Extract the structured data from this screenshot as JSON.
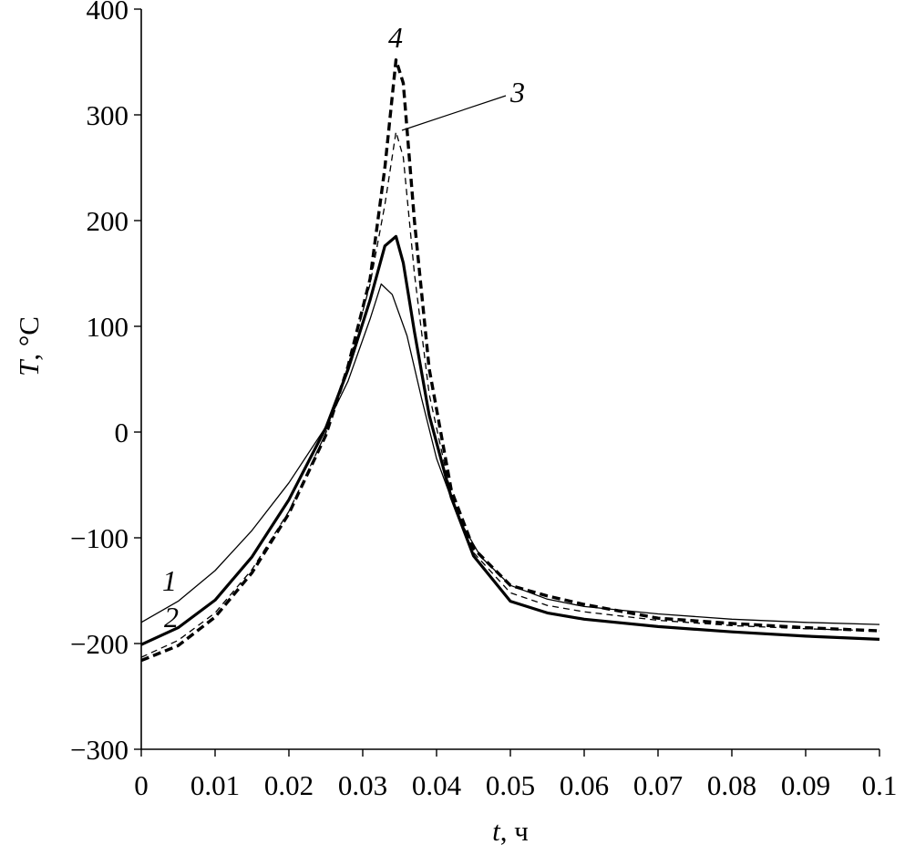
{
  "chart_data": {
    "type": "line",
    "title": "",
    "xlabel_var": "t",
    "xlabel_unit": ", ч",
    "ylabel_var": "T",
    "ylabel_unit": ", °C",
    "xlim": [
      0,
      0.1
    ],
    "ylim": [
      -300,
      400
    ],
    "x_ticks": [
      0,
      0.01,
      0.02,
      0.03,
      0.04,
      0.05,
      0.06,
      0.07,
      0.08,
      0.09,
      0.1
    ],
    "x_tick_labels": [
      "0",
      "0.01",
      "0.02",
      "0.03",
      "0.04",
      "0.05",
      "0.06",
      "0.07",
      "0.08",
      "0.09",
      "0.1"
    ],
    "y_ticks": [
      -300,
      -200,
      -100,
      0,
      100,
      200,
      300,
      400
    ],
    "y_tick_labels": [
      "−300",
      "−200",
      "−100",
      "0",
      "100",
      "200",
      "300",
      "400"
    ],
    "grid": false,
    "legend": "none",
    "series": [
      {
        "name": "1",
        "style": "thin-solid",
        "x": [
          0,
          0.005,
          0.01,
          0.015,
          0.02,
          0.025,
          0.028,
          0.031,
          0.0325,
          0.034,
          0.036,
          0.038,
          0.04,
          0.043,
          0.046,
          0.05,
          0.055,
          0.06,
          0.07,
          0.08,
          0.09,
          0.1
        ],
        "y": [
          -180,
          -160,
          -131,
          -93,
          -48,
          5,
          48,
          107,
          140,
          130,
          91,
          31,
          -25,
          -82,
          -118,
          -145,
          -158,
          -165,
          -172,
          -177,
          -180,
          -182
        ]
      },
      {
        "name": "2",
        "style": "thick-solid",
        "x": [
          0,
          0.005,
          0.01,
          0.015,
          0.02,
          0.025,
          0.028,
          0.031,
          0.033,
          0.0345,
          0.0355,
          0.037,
          0.039,
          0.042,
          0.045,
          0.05,
          0.055,
          0.06,
          0.07,
          0.08,
          0.09,
          0.1
        ],
        "y": [
          -201,
          -185,
          -159,
          -118,
          -64,
          4,
          59,
          125,
          176,
          185,
          160,
          95,
          16,
          -62,
          -117,
          -160,
          -171,
          -177,
          -184,
          -189,
          -193,
          -196
        ]
      },
      {
        "name": "3",
        "style": "thin-dashed",
        "x": [
          0,
          0.005,
          0.01,
          0.015,
          0.02,
          0.025,
          0.028,
          0.031,
          0.033,
          0.0345,
          0.0355,
          0.037,
          0.039,
          0.042,
          0.045,
          0.05,
          0.055,
          0.06,
          0.07,
          0.08,
          0.09,
          0.1
        ],
        "y": [
          -213,
          -197,
          -171,
          -130,
          -75,
          -1,
          62,
          140,
          215,
          284,
          260,
          150,
          36,
          -60,
          -114,
          -152,
          -164,
          -170,
          -178,
          -183,
          -186,
          -188
        ]
      },
      {
        "name": "4",
        "style": "thick-dashed",
        "x": [
          0,
          0.005,
          0.01,
          0.015,
          0.02,
          0.025,
          0.028,
          0.031,
          0.033,
          0.0345,
          0.0355,
          0.037,
          0.039,
          0.042,
          0.045,
          0.05,
          0.055,
          0.06,
          0.07,
          0.08,
          0.09,
          0.1
        ],
        "y": [
          -216,
          -202,
          -175,
          -133,
          -77,
          -3,
          62,
          145,
          250,
          352,
          330,
          200,
          60,
          -55,
          -110,
          -145,
          -155,
          -163,
          -176,
          -181,
          -185,
          -188
        ]
      }
    ],
    "annotations": [
      "1",
      "2",
      "3",
      "4"
    ]
  }
}
